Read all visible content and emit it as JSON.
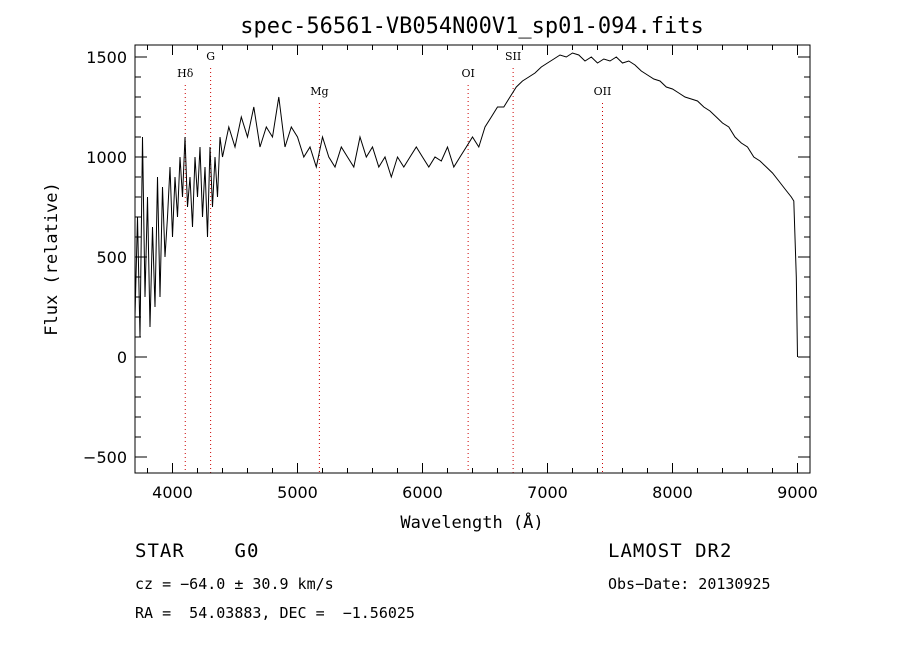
{
  "chart_data": {
    "type": "line",
    "title": "spec-56561-VB054N00V1_sp01-094.fits",
    "xlabel": "Wavelength (Å)",
    "ylabel": "Flux (relative)",
    "xlim": [
      3700,
      9100
    ],
    "ylim": [
      -580,
      1560
    ],
    "x_ticks": [
      4000,
      5000,
      6000,
      7000,
      8000,
      9000
    ],
    "x_tick_labels": [
      "4000",
      "5000",
      "6000",
      "7000",
      "8000",
      "9000"
    ],
    "y_ticks": [
      -500,
      0,
      500,
      1000,
      1500
    ],
    "y_tick_labels": [
      "−500",
      "0",
      "500",
      "1000",
      "1500"
    ],
    "grid": false,
    "line_color": "#000000",
    "marker_color": "#cc0000",
    "series": [
      {
        "x": [
          3700,
          3720,
          3740,
          3760,
          3780,
          3800,
          3820,
          3840,
          3860,
          3880,
          3900,
          3920,
          3940,
          3960,
          3980,
          4000,
          4020,
          4040,
          4060,
          4080,
          4100,
          4120,
          4140,
          4160,
          4180,
          4200,
          4220,
          4240,
          4260,
          4280,
          4300,
          4320,
          4340,
          4360,
          4380,
          4400,
          4450,
          4500,
          4550,
          4600,
          4650,
          4700,
          4750,
          4800,
          4850,
          4900,
          4950,
          5000,
          5050,
          5100,
          5150,
          5200,
          5250,
          5300,
          5350,
          5400,
          5450,
          5500,
          5550,
          5600,
          5650,
          5700,
          5750,
          5800,
          5850,
          5900,
          5950,
          6000,
          6050,
          6100,
          6150,
          6200,
          6250,
          6300,
          6350,
          6400,
          6450,
          6500,
          6550,
          6600,
          6650,
          6700,
          6750,
          6800,
          6850,
          6900,
          6950,
          7000,
          7050,
          7100,
          7150,
          7200,
          7250,
          7300,
          7350,
          7400,
          7450,
          7500,
          7550,
          7600,
          7650,
          7700,
          7750,
          7800,
          7850,
          7900,
          7950,
          8000,
          8050,
          8100,
          8150,
          8200,
          8250,
          8300,
          8350,
          8400,
          8450,
          8500,
          8550,
          8600,
          8650,
          8700,
          8750,
          8800,
          8850,
          8900,
          8950,
          8970,
          8990,
          9000
        ],
        "y": [
          200,
          700,
          100,
          1100,
          300,
          800,
          150,
          650,
          250,
          900,
          300,
          850,
          500,
          700,
          950,
          600,
          900,
          700,
          1000,
          800,
          1100,
          750,
          900,
          650,
          1000,
          800,
          1050,
          700,
          950,
          600,
          1050,
          750,
          1000,
          800,
          1100,
          1000,
          1150,
          1050,
          1200,
          1100,
          1250,
          1050,
          1150,
          1100,
          1300,
          1050,
          1150,
          1100,
          1000,
          1050,
          950,
          1100,
          1000,
          950,
          1050,
          1000,
          950,
          1100,
          1000,
          1050,
          950,
          1000,
          900,
          1000,
          950,
          1000,
          1050,
          1000,
          950,
          1000,
          980,
          1050,
          950,
          1000,
          1050,
          1100,
          1050,
          1150,
          1200,
          1250,
          1250,
          1300,
          1350,
          1380,
          1400,
          1420,
          1450,
          1470,
          1490,
          1510,
          1500,
          1520,
          1510,
          1480,
          1500,
          1470,
          1490,
          1480,
          1500,
          1470,
          1480,
          1460,
          1430,
          1410,
          1390,
          1380,
          1350,
          1340,
          1320,
          1300,
          1290,
          1280,
          1250,
          1230,
          1200,
          1170,
          1150,
          1100,
          1070,
          1050,
          1000,
          980,
          950,
          920,
          880,
          840,
          800,
          780,
          400,
          0
        ]
      }
    ],
    "line_markers": [
      {
        "label": "Hδ",
        "x": 4102,
        "label_y": 1400
      },
      {
        "label": "G",
        "x": 4305,
        "label_y": 1485
      },
      {
        "label": "Mg",
        "x": 5175,
        "label_y": 1310
      },
      {
        "label": "OI",
        "x": 6365,
        "label_y": 1400
      },
      {
        "label": "SII",
        "x": 6725,
        "label_y": 1485
      },
      {
        "label": "OII",
        "x": 7440,
        "label_y": 1310
      }
    ]
  },
  "info": {
    "star_type": "STAR    G0",
    "survey": "LAMOST DR2",
    "cz": "cz = −64.0 ± 30.9 km/s",
    "obs_date": "Obs−Date: 20130925",
    "radec": "RA =  54.03883, DEC =  −1.56025"
  }
}
